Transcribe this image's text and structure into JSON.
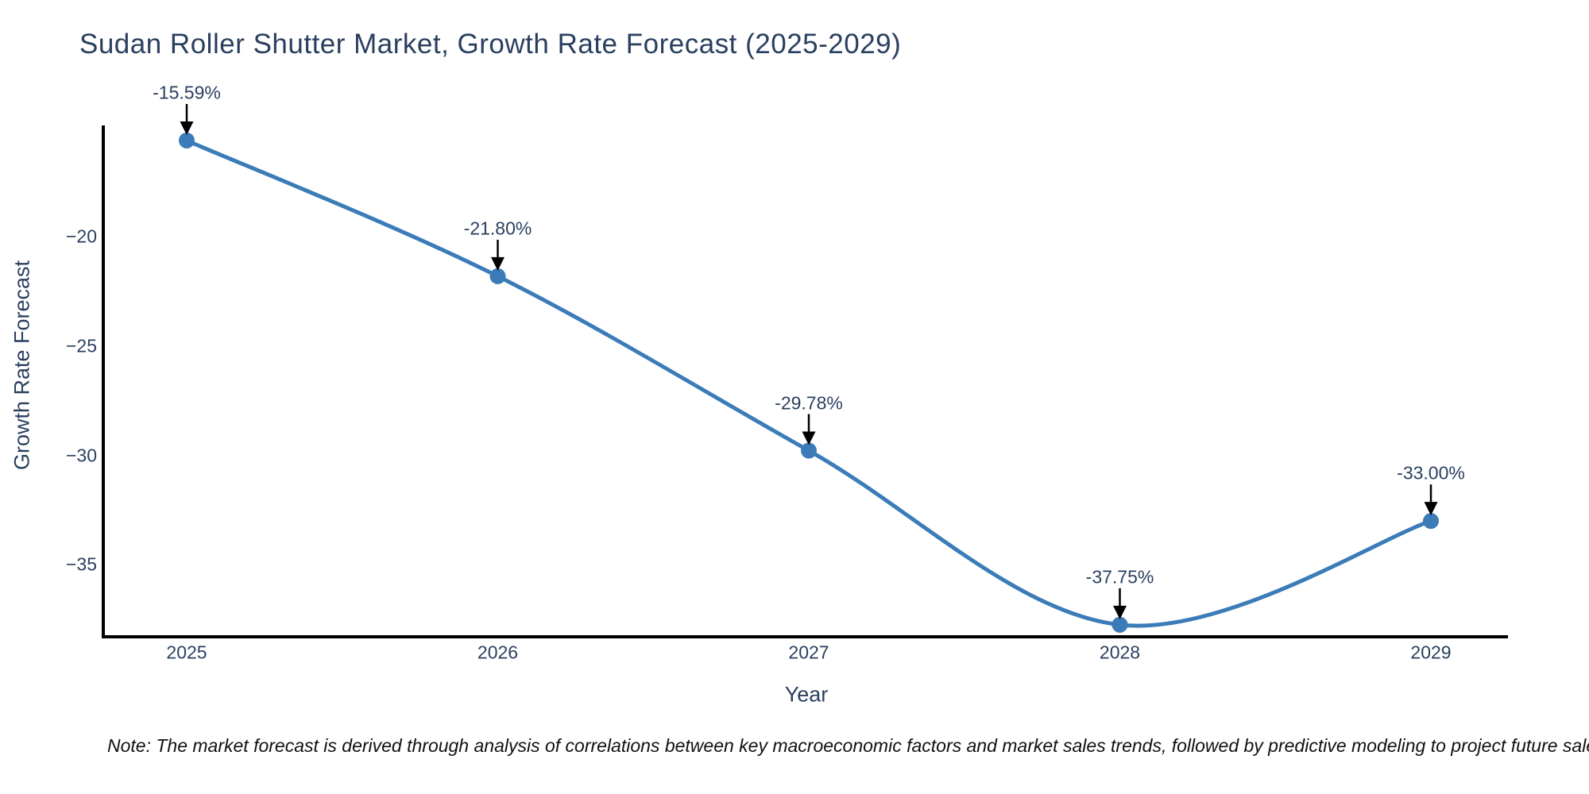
{
  "chart_data": {
    "type": "line",
    "title": "Sudan Roller Shutter Market, Growth Rate Forecast (2025-2029)",
    "xlabel": "Year",
    "ylabel": "Growth Rate Forecast",
    "categories": [
      "2025",
      "2026",
      "2027",
      "2028",
      "2029"
    ],
    "series": [
      {
        "name": "Growth Rate Forecast",
        "values": [
          -15.59,
          -21.8,
          -29.78,
          -37.75,
          -33.0
        ]
      }
    ],
    "point_labels": [
      "-15.59%",
      "-21.80%",
      "-29.78%",
      "-37.75%",
      "-33.00%"
    ],
    "x_tick_labels": [
      "2025",
      "2026",
      "2027",
      "2028",
      "2029"
    ],
    "y_ticks": [
      -20,
      -25,
      -30,
      -35
    ],
    "y_tick_labels": [
      "−20",
      "−25",
      "−30",
      "−35"
    ],
    "ylim": [
      -38.3,
      -14.9
    ],
    "grid": false,
    "legend_position": "none",
    "line_shape": "spline",
    "colors": {
      "line": "#3b7cb8",
      "marker": "#3b7cb8",
      "text": "#2a3f5f",
      "axis": "#000000",
      "arrow": "#000000"
    }
  },
  "note": {
    "text": "Note: The market forecast is derived through analysis of correlations between key macroeconomic factors and market sales trends, followed by predictive modeling to project future sales."
  }
}
